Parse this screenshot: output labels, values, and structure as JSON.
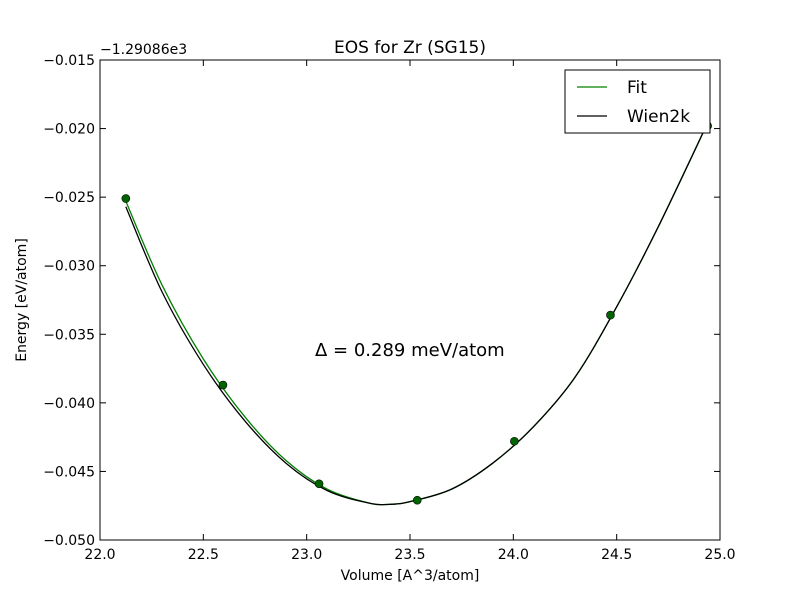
{
  "chart_data": {
    "type": "line",
    "title": "EOS for Zr (SG15)",
    "xlabel": "Volume [A^3/atom]",
    "ylabel": "Energy [eV/atom]",
    "y_offset_label": "−1.29086e3",
    "xlim": [
      22.0,
      25.0
    ],
    "ylim": [
      -0.05,
      -0.015
    ],
    "x_ticks": [
      22.0,
      22.5,
      23.0,
      23.5,
      24.0,
      24.5,
      25.0
    ],
    "x_tick_labels": [
      "22.0",
      "22.5",
      "23.0",
      "23.5",
      "24.0",
      "24.5",
      "25.0"
    ],
    "y_ticks": [
      -0.015,
      -0.02,
      -0.025,
      -0.03,
      -0.035,
      -0.04,
      -0.045,
      -0.05
    ],
    "y_tick_labels": [
      "−0.015",
      "−0.020",
      "−0.025",
      "−0.030",
      "−0.035",
      "−0.040",
      "−0.045",
      "−0.050"
    ],
    "annotation": "Δ = 0.289 meV/atom",
    "legend_position": "top-right",
    "points": {
      "color": "#006400",
      "x": [
        22.125,
        22.595,
        23.06,
        23.535,
        24.005,
        24.47,
        24.94
      ],
      "y": [
        -0.0251,
        -0.0387,
        -0.0459,
        -0.0471,
        -0.0428,
        -0.0336,
        -0.0198
      ]
    },
    "series": [
      {
        "name": "Fit",
        "color": "#008000",
        "x": [
          22.125,
          22.3,
          22.5,
          22.7,
          22.9,
          23.1,
          23.3,
          23.4,
          23.5,
          23.7,
          23.9,
          24.1,
          24.3,
          24.5,
          24.7,
          24.94
        ],
        "y": [
          -0.0253,
          -0.0314,
          -0.0368,
          -0.041,
          -0.0442,
          -0.0463,
          -0.0473,
          -0.0474,
          -0.0472,
          -0.0463,
          -0.0444,
          -0.0417,
          -0.0381,
          -0.033,
          -0.0272,
          -0.0196
        ]
      },
      {
        "name": "Wien2k",
        "color": "#000000",
        "x": [
          22.125,
          22.3,
          22.5,
          22.7,
          22.9,
          23.1,
          23.3,
          23.4,
          23.5,
          23.7,
          23.9,
          24.1,
          24.3,
          24.5,
          24.7,
          24.94
        ],
        "y": [
          -0.0257,
          -0.0319,
          -0.0372,
          -0.0413,
          -0.0444,
          -0.0464,
          -0.0473,
          -0.0474,
          -0.0472,
          -0.0463,
          -0.0444,
          -0.0417,
          -0.0381,
          -0.033,
          -0.0272,
          -0.0196
        ]
      }
    ]
  }
}
